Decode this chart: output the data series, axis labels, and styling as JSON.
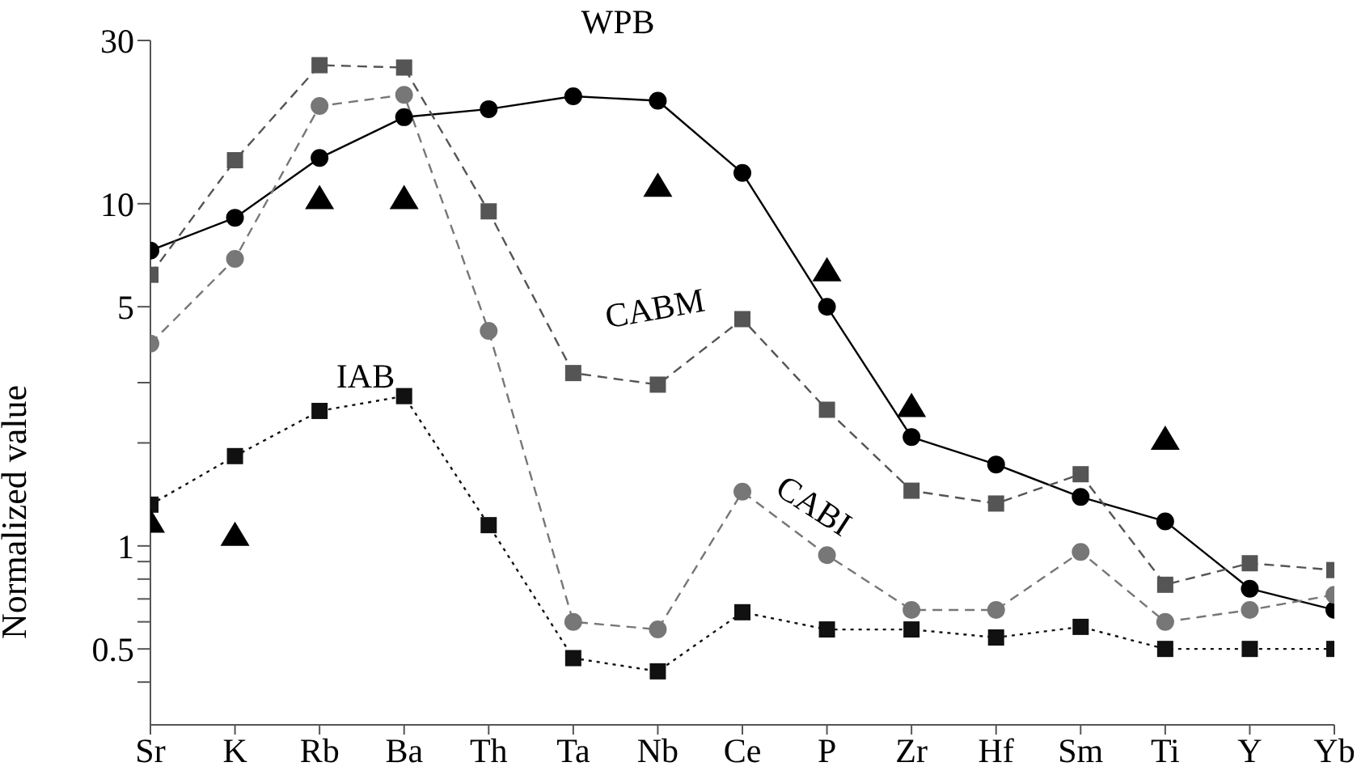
{
  "chart_data": {
    "type": "line",
    "ylabel": "Normalized value",
    "log": true,
    "grid": false,
    "legend": false,
    "categories": [
      "Sr",
      "K",
      "Rb",
      "Ba",
      "Th",
      "Ta",
      "Nb",
      "Ce",
      "P",
      "Zr",
      "Hf",
      "Sm",
      "Ti",
      "Y",
      "Yb"
    ],
    "ylim": [
      0.3,
      30
    ],
    "yticks": [
      {
        "value": 0.4,
        "label": null
      },
      0.5,
      {
        "value": 0.6,
        "label": null
      },
      {
        "value": 0.7,
        "label": null
      },
      {
        "value": 0.8,
        "label": null
      },
      {
        "value": 0.9,
        "label": null
      },
      1,
      {
        "value": 2,
        "label": null
      },
      {
        "value": 3,
        "label": null
      },
      5,
      10,
      30
    ],
    "series": [
      {
        "name": "WPB",
        "color": "#000000",
        "marker": "circle",
        "line_style": "solid",
        "values": [
          7.3,
          9.1,
          13.6,
          17.9,
          18.9,
          20.6,
          20,
          12.3,
          5.0,
          2.08,
          1.73,
          1.39,
          1.18,
          0.75,
          0.65
        ]
      },
      {
        "name": "CABM",
        "color": "#555555",
        "marker": "square",
        "line_style": "dashed",
        "values": [
          6.2,
          13.4,
          25.4,
          25,
          9.5,
          3.2,
          2.96,
          4.6,
          2.5,
          1.45,
          1.33,
          1.62,
          0.77,
          0.89,
          0.85
        ]
      },
      {
        "name": "CABI",
        "color": "#777777",
        "marker": "circle",
        "line_style": "dashed",
        "values": [
          3.9,
          6.9,
          19.3,
          20.8,
          4.25,
          0.6,
          0.57,
          1.44,
          0.94,
          0.65,
          0.65,
          0.96,
          0.6,
          0.65,
          0.72
        ]
      },
      {
        "name": "IAB",
        "color": "#111111",
        "marker": "square",
        "line_style": "dotted",
        "values": [
          1.32,
          1.83,
          2.48,
          2.74,
          1.15,
          0.47,
          0.43,
          0.64,
          0.57,
          0.57,
          0.54,
          0.58,
          0.5,
          0.5,
          0.5
        ]
      },
      {
        "type": "scatter",
        "color": "#000000",
        "marker": "triangle",
        "values": [
          1.18,
          1.08,
          10.4,
          10.4,
          null,
          null,
          11.3,
          null,
          6.4,
          2.57,
          null,
          null,
          2.06,
          null,
          null
        ]
      }
    ]
  }
}
